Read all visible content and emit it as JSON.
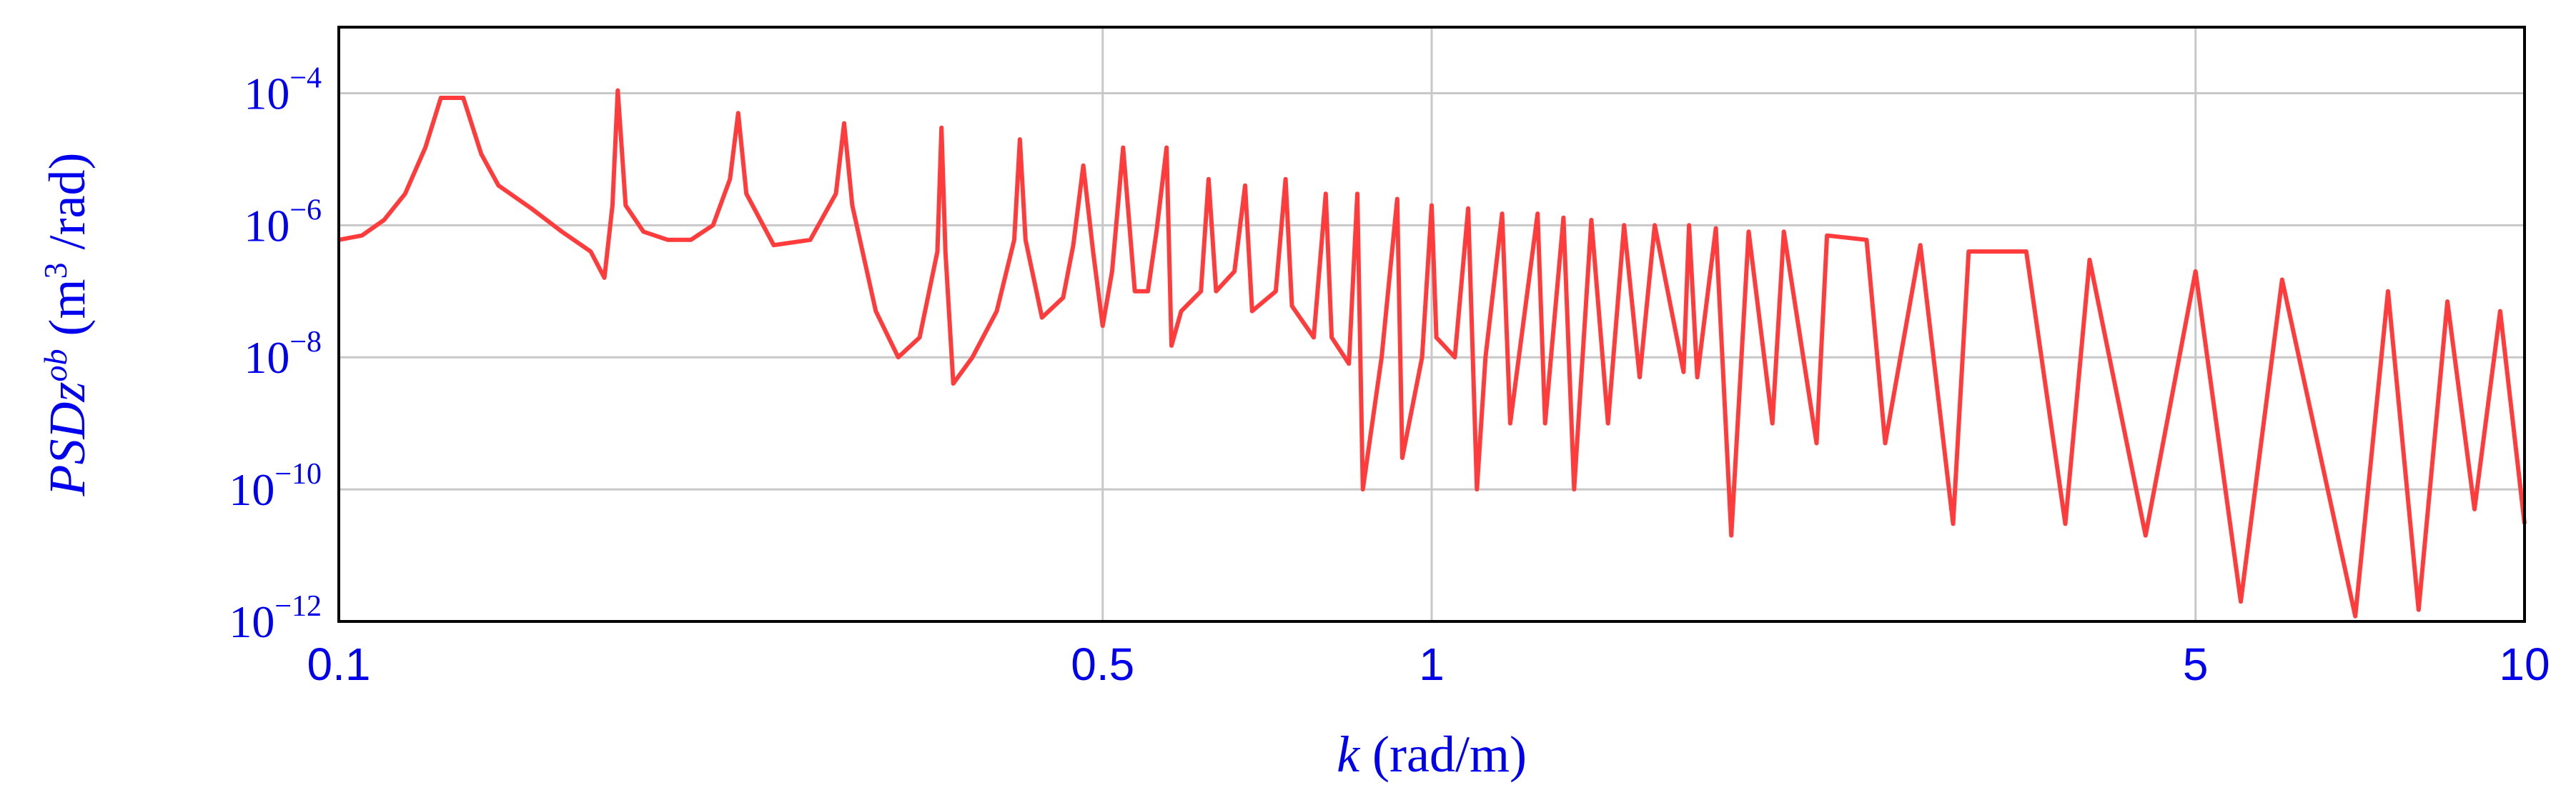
{
  "chart_data": {
    "type": "line",
    "x_scale": "log",
    "y_scale": "log",
    "xlim": [
      0.1,
      10
    ],
    "ylim": [
      1e-12,
      0.001
    ],
    "grid": true,
    "xlabel": {
      "symbol": "k",
      "unit": " (rad/m)"
    },
    "ylabel": {
      "symbol": "PSDz",
      "superscript": "ob",
      "unit_open": " (m",
      "unit_exp": "3",
      "unit_close": " /rad)"
    },
    "xticks": [
      {
        "value": 0.1,
        "label": "0.1"
      },
      {
        "value": 0.5,
        "label": "0.5"
      },
      {
        "value": 1,
        "label": "1"
      },
      {
        "value": 5,
        "label": "5"
      },
      {
        "value": 10,
        "label": "10"
      }
    ],
    "yticks": [
      {
        "value": 1e-12,
        "base": "10",
        "exp": "−12"
      },
      {
        "value": 1e-10,
        "base": "10",
        "exp": "−10"
      },
      {
        "value": 1e-08,
        "base": "10",
        "exp": "−8"
      },
      {
        "value": 1e-06,
        "base": "10",
        "exp": "−6"
      },
      {
        "value": 0.0001,
        "base": "10",
        "exp": "−4"
      }
    ],
    "colors": {
      "line": "#ff3b3b",
      "axis_text": "#0000ee",
      "frame": "#000000",
      "grid": "#c8c8c8"
    },
    "series": [
      {
        "values": [
          [
            0.1,
            6e-07
          ],
          [
            0.105,
            7e-07
          ],
          [
            0.11,
            1.2e-06
          ],
          [
            0.115,
            3e-06
          ],
          [
            0.12,
            1.5e-05
          ],
          [
            0.124,
            8.5e-05
          ],
          [
            0.13,
            8.5e-05
          ],
          [
            0.135,
            1.2e-05
          ],
          [
            0.14,
            4e-06
          ],
          [
            0.15,
            1.8e-06
          ],
          [
            0.16,
            8e-07
          ],
          [
            0.17,
            4e-07
          ],
          [
            0.175,
            1.6e-07
          ],
          [
            0.178,
            2e-06
          ],
          [
            0.18,
            0.00011
          ],
          [
            0.183,
            2e-06
          ],
          [
            0.19,
            8e-07
          ],
          [
            0.2,
            6e-07
          ],
          [
            0.21,
            6e-07
          ],
          [
            0.22,
            1e-06
          ],
          [
            0.228,
            5e-06
          ],
          [
            0.232,
            5e-05
          ],
          [
            0.236,
            3e-06
          ],
          [
            0.25,
            5e-07
          ],
          [
            0.27,
            6e-07
          ],
          [
            0.285,
            3e-06
          ],
          [
            0.29,
            3.5e-05
          ],
          [
            0.295,
            2e-06
          ],
          [
            0.31,
            5e-08
          ],
          [
            0.325,
            1e-08
          ],
          [
            0.34,
            2e-08
          ],
          [
            0.353,
            4e-07
          ],
          [
            0.356,
            3e-05
          ],
          [
            0.359,
            4e-07
          ],
          [
            0.365,
            4e-09
          ],
          [
            0.38,
            1e-08
          ],
          [
            0.4,
            5e-08
          ],
          [
            0.415,
            6e-07
          ],
          [
            0.42,
            2e-05
          ],
          [
            0.425,
            6e-07
          ],
          [
            0.44,
            4e-08
          ],
          [
            0.46,
            8e-08
          ],
          [
            0.47,
            5e-07
          ],
          [
            0.48,
            8e-06
          ],
          [
            0.49,
            4e-07
          ],
          [
            0.5,
            3e-08
          ],
          [
            0.51,
            2e-07
          ],
          [
            0.522,
            1.5e-05
          ],
          [
            0.535,
            1e-07
          ],
          [
            0.55,
            1e-07
          ],
          [
            0.56,
            8e-07
          ],
          [
            0.572,
            1.5e-05
          ],
          [
            0.578,
            1.5e-08
          ],
          [
            0.59,
            5e-08
          ],
          [
            0.615,
            1e-07
          ],
          [
            0.625,
            5e-06
          ],
          [
            0.635,
            1e-07
          ],
          [
            0.66,
            2e-07
          ],
          [
            0.675,
            4e-06
          ],
          [
            0.685,
            5e-08
          ],
          [
            0.72,
            1e-07
          ],
          [
            0.735,
            5e-06
          ],
          [
            0.745,
            6e-08
          ],
          [
            0.78,
            2e-08
          ],
          [
            0.8,
            3e-06
          ],
          [
            0.81,
            2e-08
          ],
          [
            0.84,
            8e-09
          ],
          [
            0.855,
            3e-06
          ],
          [
            0.865,
            1e-10
          ],
          [
            0.9,
            1e-08
          ],
          [
            0.93,
            2.5e-06
          ],
          [
            0.94,
            3e-10
          ],
          [
            0.98,
            1e-08
          ],
          [
            1.0,
            2e-06
          ],
          [
            1.01,
            2e-08
          ],
          [
            1.05,
            1e-08
          ],
          [
            1.08,
            1.8e-06
          ],
          [
            1.1,
            1e-10
          ],
          [
            1.12,
            1e-08
          ],
          [
            1.16,
            1.5e-06
          ],
          [
            1.18,
            1e-09
          ],
          [
            1.25,
            1.5e-06
          ],
          [
            1.27,
            1e-09
          ],
          [
            1.32,
            1.3e-06
          ],
          [
            1.35,
            1e-10
          ],
          [
            1.4,
            1.2e-06
          ],
          [
            1.45,
            1e-09
          ],
          [
            1.5,
            1e-06
          ],
          [
            1.55,
            5e-09
          ],
          [
            1.6,
            1e-06
          ],
          [
            1.7,
            6e-09
          ],
          [
            1.72,
            1e-06
          ],
          [
            1.75,
            5e-09
          ],
          [
            1.82,
            9e-07
          ],
          [
            1.88,
            2e-11
          ],
          [
            1.95,
            8e-07
          ],
          [
            2.05,
            1e-09
          ],
          [
            2.1,
            8e-07
          ],
          [
            2.25,
            5e-10
          ],
          [
            2.3,
            7e-07
          ],
          [
            2.5,
            6e-07
          ],
          [
            2.6,
            5e-10
          ],
          [
            2.8,
            5e-07
          ],
          [
            3.0,
            3e-11
          ],
          [
            3.1,
            4e-07
          ],
          [
            3.5,
            4e-07
          ],
          [
            3.8,
            3e-11
          ],
          [
            4.0,
            3e-07
          ],
          [
            4.5,
            2e-11
          ],
          [
            5.0,
            2e-07
          ],
          [
            5.5,
            2e-12
          ],
          [
            6.0,
            1.5e-07
          ],
          [
            7.0,
            1.2e-12
          ],
          [
            7.5,
            1e-07
          ],
          [
            8.0,
            1.5e-12
          ],
          [
            8.5,
            7e-08
          ],
          [
            9.0,
            5e-11
          ],
          [
            9.5,
            5e-08
          ],
          [
            10.0,
            3e-11
          ]
        ]
      }
    ]
  }
}
